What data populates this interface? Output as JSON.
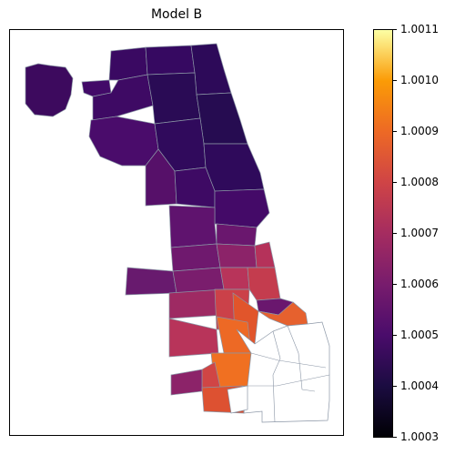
{
  "title": "Model B",
  "colorbar": {
    "colormap": "inferno",
    "ticks": [
      "1.0011",
      "1.0010",
      "1.0009",
      "1.0008",
      "1.0007",
      "1.0006",
      "1.0005",
      "1.0004",
      "1.0003"
    ]
  },
  "colors": {
    "no_data_fill": "#ffffff",
    "border": "#8a95a5"
  }
}
